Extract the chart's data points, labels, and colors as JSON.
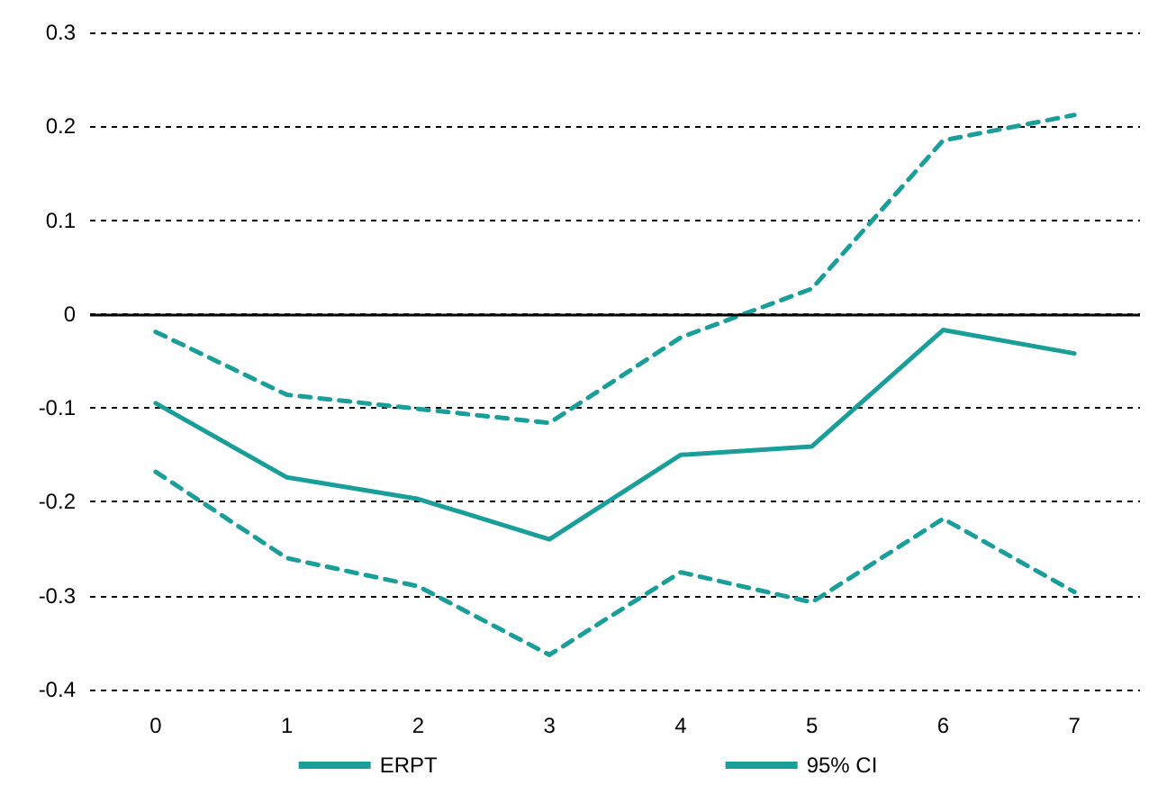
{
  "chart_data": {
    "type": "line",
    "categories": [
      "0",
      "1",
      "2",
      "3",
      "4",
      "5",
      "6",
      "7"
    ],
    "series": [
      {
        "name": "ERPT",
        "color": "#1a9e9a",
        "line_style": "solid",
        "values": [
          -0.095,
          -0.174,
          -0.197,
          -0.24,
          -0.15,
          -0.141,
          -0.017,
          -0.042
        ]
      },
      {
        "name": "95% CI",
        "color": "#1a9e9a",
        "line_style": "dashed",
        "values": [
          -0.019,
          -0.086,
          -0.101,
          -0.116,
          -0.025,
          0.027,
          0.185,
          0.212
        ]
      },
      {
        "color": "#1a9e9a",
        "line_style": "dashed",
        "values": [
          -0.168,
          -0.26,
          -0.29,
          -0.363,
          -0.275,
          -0.307,
          -0.218,
          -0.296
        ]
      }
    ],
    "ylim": [
      -0.4,
      0.3
    ],
    "yticks": [
      -0.4,
      -0.3,
      -0.2,
      -0.1,
      0,
      0.1,
      0.2,
      0.3
    ],
    "ref_lines": [
      {
        "axis": "y",
        "value": 0,
        "color": "#000000"
      }
    ],
    "grid": "y",
    "legend": "bottom",
    "marker": "none"
  }
}
